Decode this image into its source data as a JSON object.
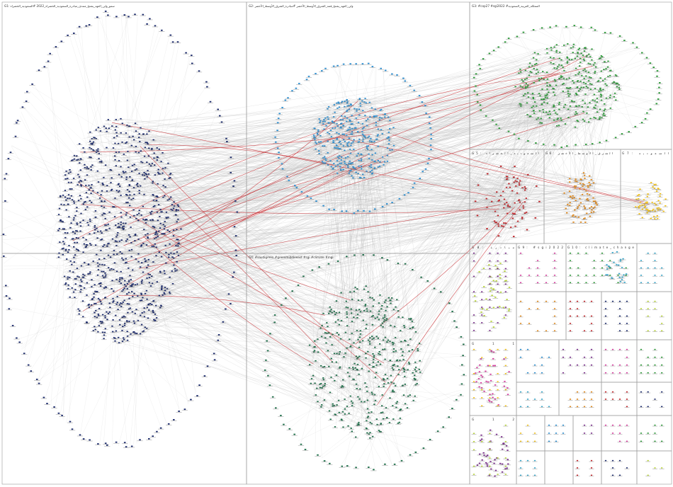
{
  "colors": {
    "group1": "#1b2a6b",
    "group2": "#2f8fd0",
    "group3": "#2e9a3a",
    "group4": "#1f6f4a",
    "group5": "#c0262b",
    "group6": "#e08a1e",
    "group7": "#f2c21b",
    "group8": "#b8d43a",
    "group9": "#7a2f8c",
    "group10": "#d63fa0",
    "group11": "#3aa6c9",
    "edge": "#b9b9b9",
    "edge_strong": "#c8282d",
    "panel_border": "#9a9a9a"
  },
  "groups": [
    {
      "id": "G1",
      "label": "G1: سمو_ولي_العهد_يفتتح_منتدى_مبادرة_السعودية_الخضراء_2022 #السعودية_الخضراء",
      "node_color": "#1b2a6b"
    },
    {
      "id": "G2",
      "label": "G2: ولي_العهد_يفتتح_قمة_الشرق_الأوسط_الأخضر #مبادرة_الشرق_الأوسط_الأخضر",
      "node_color": "#2f8fd0"
    },
    {
      "id": "G3",
      "label": "G3: #cop27 #sgi2022 #المملكة_العربية_السعودية",
      "node_color": "#2e9a3a"
    },
    {
      "id": "G4",
      "label": "G4: #saudigreen #greenmiddleeast #sgi #climate #mgi",
      "node_color": "#1f6f4a"
    },
    {
      "id": "G5",
      "label": "G5: السعودية_الخضراء",
      "node_color": "#c0262b"
    },
    {
      "id": "G6",
      "label": "G6: الشرق_الأوسط_الأخضر",
      "node_color": "#e08a1e"
    },
    {
      "id": "G7",
      "label": "G7: السعودية",
      "node_color": "#f2c21b"
    },
    {
      "id": "G8",
      "label": "G8: مبادرة",
      "node_color": "#b8d43a"
    },
    {
      "id": "G9",
      "label": "G9: #sgi2022",
      "node_color": "#7a2f8c"
    },
    {
      "id": "G10",
      "label": "G10: climate_change",
      "node_color": "#3aa6c9"
    },
    {
      "id": "G11",
      "label": "G11",
      "node_color": "#d63fa0"
    },
    {
      "id": "G12",
      "label": "G12",
      "node_color": "#2e9a3a"
    }
  ]
}
